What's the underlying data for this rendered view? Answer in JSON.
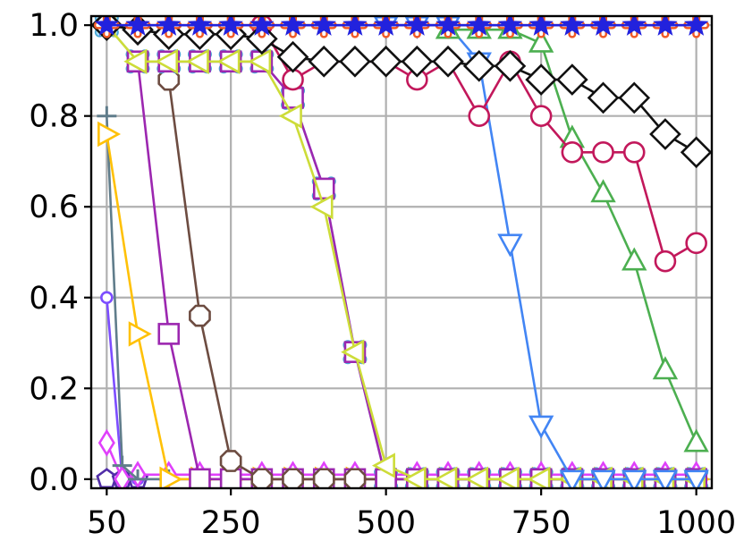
{
  "chart_data": {
    "type": "line",
    "title": "",
    "xlabel": "",
    "ylabel": "",
    "xlim": [
      25,
      1025
    ],
    "ylim": [
      -0.02,
      1.02
    ],
    "grid": true,
    "x_ticks": [
      50,
      250,
      500,
      750,
      1000
    ],
    "y_ticks": [
      0.0,
      0.2,
      0.4,
      0.6,
      0.8,
      1.0
    ],
    "x_tick_labels": [
      "50",
      "250",
      "500",
      "750",
      "1000"
    ],
    "y_tick_labels": [
      "0.0",
      "0.2",
      "0.4",
      "0.6",
      "0.8",
      "1.0"
    ],
    "series": [
      {
        "color": "#2222dd",
        "marker": "star",
        "x": [
          50,
          100,
          150,
          200,
          250,
          300,
          350,
          400,
          450,
          500,
          550,
          600,
          650,
          700,
          750,
          800,
          850,
          900,
          950,
          1000
        ],
        "y": [
          1,
          1,
          1,
          1,
          1,
          1,
          1,
          1,
          1,
          1,
          1,
          1,
          1,
          1,
          1,
          1,
          1,
          1,
          1,
          1
        ]
      },
      {
        "color": "#f05a28",
        "marker": "plus",
        "x": [
          50,
          100,
          150,
          200,
          250,
          300,
          350,
          400,
          450,
          500,
          550,
          600,
          650,
          700,
          750,
          800,
          850,
          900,
          950,
          1000
        ],
        "y": [
          1,
          1,
          1,
          1,
          1,
          1,
          1,
          1,
          1,
          1,
          1,
          1,
          1,
          1,
          1,
          1,
          1,
          1,
          1,
          1
        ]
      },
      {
        "color": "#111111",
        "marker": "diamond",
        "x": [
          50,
          100,
          150,
          200,
          250,
          300,
          350,
          400,
          450,
          500,
          550,
          600,
          650,
          700,
          750,
          800,
          850,
          900,
          950,
          1000
        ],
        "y": [
          1.0,
          0.99,
          0.98,
          0.98,
          0.98,
          0.97,
          0.93,
          0.92,
          0.92,
          0.92,
          0.92,
          0.92,
          0.91,
          0.91,
          0.88,
          0.88,
          0.84,
          0.84,
          0.76,
          0.72
        ]
      },
      {
        "color": "#c2185b",
        "marker": "circle",
        "x": [
          300,
          350,
          400,
          450,
          500,
          550,
          600,
          650,
          700,
          750,
          800,
          850,
          900,
          950,
          1000
        ],
        "y": [
          1.0,
          0.88,
          0.92,
          0.92,
          0.92,
          0.88,
          0.92,
          0.8,
          0.92,
          0.8,
          0.72,
          0.72,
          0.72,
          0.48,
          0.52
        ]
      },
      {
        "color": "#4caf50",
        "marker": "triangle-up",
        "x": [
          600,
          650,
          700,
          750,
          800,
          850,
          900,
          950,
          1000
        ],
        "y": [
          0.99,
          0.99,
          0.99,
          0.96,
          0.75,
          0.63,
          0.48,
          0.24,
          0.08
        ]
      },
      {
        "color": "#4285f4",
        "marker": "triangle-down",
        "x": [
          500,
          550,
          600,
          650,
          700,
          750,
          800,
          850,
          900,
          950,
          1000
        ],
        "y": [
          1.0,
          1.0,
          1.0,
          0.92,
          0.52,
          0.12,
          0.0,
          0.0,
          0.0,
          0.0,
          0.0
        ]
      },
      {
        "color": "#cddc39",
        "marker": "triangle-left",
        "x": [
          50,
          100,
          150,
          200,
          250,
          300,
          350,
          400,
          450,
          500,
          550,
          600,
          650,
          700,
          750,
          800,
          850,
          900,
          950,
          1000
        ],
        "y": [
          1.0,
          0.92,
          0.92,
          0.92,
          0.92,
          0.92,
          0.8,
          0.6,
          0.28,
          0.03,
          0.0,
          0.0,
          0.0,
          0.0,
          0.0,
          0.0,
          0.0,
          0.0,
          0.0,
          0.0
        ]
      },
      {
        "color": "#9c27b0",
        "marker": "square",
        "x": [
          100,
          150,
          200,
          250,
          300,
          350,
          400,
          450,
          500,
          550,
          600,
          650,
          700,
          750,
          800,
          850,
          900,
          950,
          1000
        ],
        "y": [
          0.92,
          0.92,
          0.92,
          0.92,
          0.92,
          0.84,
          0.64,
          0.28,
          0.0,
          0.0,
          0.0,
          0.0,
          0.0,
          0.0,
          0.0,
          0.0,
          0.0,
          0.0,
          0.0
        ]
      },
      {
        "color": "#a8e0f5",
        "marker": "x",
        "x": [
          50,
          100,
          150,
          200,
          250,
          300,
          350,
          400,
          450,
          500,
          550,
          600,
          650,
          700,
          750,
          800,
          850,
          900,
          950,
          1000
        ],
        "y": [
          1.0,
          0.92,
          0.92,
          0.92,
          0.92,
          0.92,
          0.84,
          0.64,
          0.28,
          0.0,
          0.0,
          0.0,
          0.0,
          0.0,
          0.0,
          0.0,
          0.0,
          0.0,
          0.0,
          0.0
        ]
      },
      {
        "color": "#6d4c41",
        "marker": "octagon",
        "x": [
          150,
          200,
          250,
          300,
          350,
          400,
          450,
          500,
          550,
          600,
          650,
          700,
          750,
          800,
          850,
          900,
          950,
          1000
        ],
        "y": [
          0.88,
          0.36,
          0.04,
          0.0,
          0.0,
          0.0,
          0.0,
          0.0,
          0.0,
          0.0,
          0.0,
          0.0,
          0.0,
          0.0,
          0.0,
          0.0,
          0.0,
          0.0
        ]
      },
      {
        "color": "#9c27b0",
        "marker": "square",
        "x": [
          100,
          150,
          200,
          250,
          300,
          350,
          400,
          450,
          500,
          550,
          600,
          650,
          700,
          750,
          800,
          850,
          900,
          950,
          1000
        ],
        "y": [
          0.92,
          0.32,
          0.0,
          0.0,
          0.0,
          0.0,
          0.0,
          0.0,
          0.0,
          0.0,
          0.0,
          0.0,
          0.0,
          0.0,
          0.0,
          0.0,
          0.0,
          0.0,
          0.0
        ]
      },
      {
        "color": "#ffc107",
        "marker": "triangle-right",
        "x": [
          50,
          100,
          150,
          200,
          250,
          300,
          350,
          400,
          450,
          500,
          550,
          600,
          650,
          700,
          750,
          800,
          850,
          900,
          950,
          1000
        ],
        "y": [
          0.76,
          0.32,
          0.0,
          0.0,
          0.0,
          0.0,
          0.0,
          0.0,
          0.0,
          0.0,
          0.0,
          0.0,
          0.0,
          0.0,
          0.0,
          0.0,
          0.0,
          0.0,
          0.0,
          0.0
        ]
      },
      {
        "color": "#607d8b",
        "marker": "tri",
        "x": [
          50,
          75,
          100,
          150,
          200,
          250,
          300,
          350,
          400,
          450,
          500,
          550,
          600,
          650,
          700,
          750,
          800,
          850,
          900,
          950,
          1000
        ],
        "y": [
          0.8,
          0.03,
          0.0,
          0.0,
          0.0,
          0.0,
          0.0,
          0.0,
          0.0,
          0.0,
          0.0,
          0.0,
          0.0,
          0.0,
          0.0,
          0.0,
          0.0,
          0.0,
          0.0,
          0.0,
          0.0
        ]
      },
      {
        "color": "#e040fb",
        "marker": "thin-diamond",
        "x": [
          50,
          75,
          100,
          150,
          200,
          250,
          300,
          350,
          400,
          450,
          500,
          550,
          600,
          650,
          700,
          750,
          800,
          850,
          900,
          950,
          1000
        ],
        "y": [
          0.08,
          0.0,
          0.01,
          0.01,
          0.01,
          0.01,
          0.01,
          0.01,
          0.01,
          0.01,
          0.01,
          0.01,
          0.01,
          0.01,
          0.01,
          0.01,
          0.01,
          0.01,
          0.01,
          0.01,
          0.01
        ]
      },
      {
        "color": "#7c4dff",
        "marker": "small-circle",
        "x": [
          50,
          75,
          100,
          150,
          200,
          250,
          300,
          350,
          400,
          450,
          500,
          550,
          600,
          650,
          700,
          750,
          800,
          850,
          900,
          950,
          1000
        ],
        "y": [
          0.4,
          0.0,
          0.0,
          0.0,
          0.0,
          0.0,
          0.0,
          0.0,
          0.0,
          0.0,
          0.0,
          0.0,
          0.0,
          0.0,
          0.0,
          0.0,
          0.0,
          0.0,
          0.0,
          0.0,
          0.0
        ]
      },
      {
        "color": "#512da8",
        "marker": "pentagon",
        "x": [
          50,
          75,
          100
        ],
        "y": [
          0.0,
          0.0,
          0.0
        ]
      }
    ]
  }
}
